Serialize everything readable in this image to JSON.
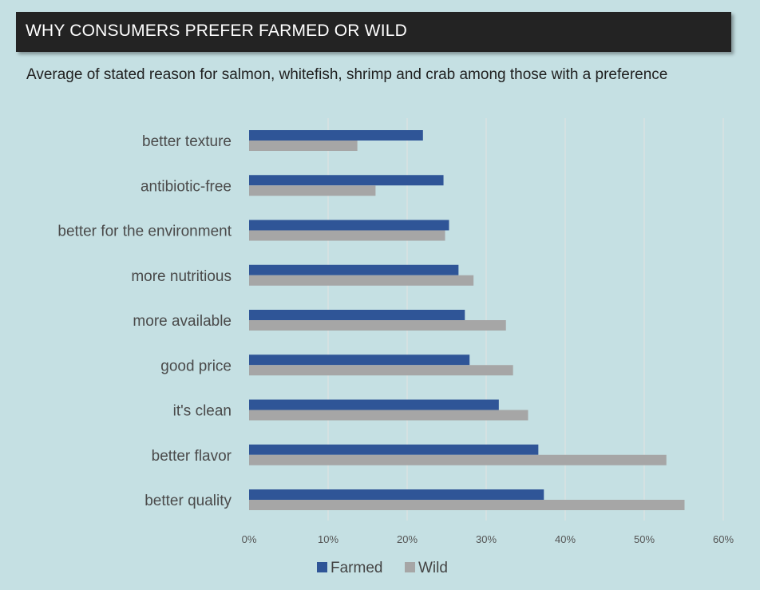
{
  "header": {
    "title": "WHY CONSUMERS PREFER FARMED OR WILD",
    "subtitle": "Average of stated reason for salmon, whitefish, shrimp and crab among those with a preference"
  },
  "colors": {
    "background": "#c5e0e3",
    "title_bar": "#232323",
    "farmed": "#2f5597",
    "wild": "#a6a6a6",
    "gridline": "#e2e2e2"
  },
  "chart_data": {
    "type": "bar",
    "orientation": "horizontal",
    "categories": [
      "better texture",
      "antibiotic-free",
      "better for the environment",
      "more nutritious",
      "more available",
      "good price",
      "it's clean",
      "better flavor",
      "better quality"
    ],
    "series": [
      {
        "name": "Farmed",
        "values": [
          22,
          24.6,
          25.3,
          26.5,
          27.3,
          27.9,
          31.6,
          36.6,
          37.3
        ]
      },
      {
        "name": "Wild",
        "values": [
          13.7,
          16,
          24.8,
          28.4,
          32.5,
          33.4,
          35.3,
          52.8,
          55.1
        ]
      }
    ],
    "xlim": [
      0,
      60
    ],
    "xticks": [
      0,
      10,
      20,
      30,
      40,
      50,
      60
    ],
    "xtick_labels": [
      "0%",
      "10%",
      "20%",
      "30%",
      "40%",
      "50%",
      "60%"
    ],
    "grid": true,
    "legend_position": "bottom"
  }
}
